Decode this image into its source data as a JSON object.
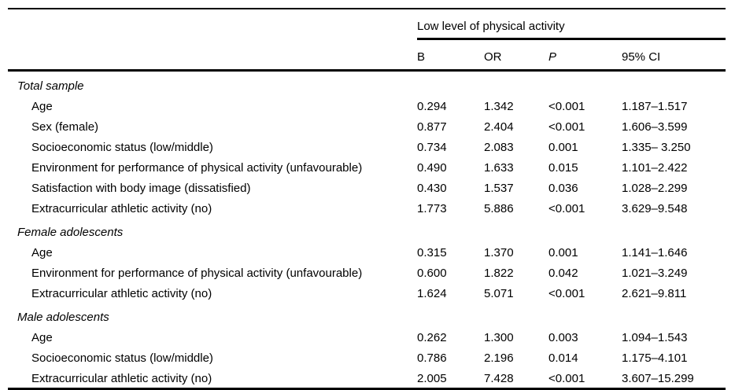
{
  "table": {
    "spanner_header": "Low level of physical activity",
    "columns": [
      "B",
      "OR",
      "P",
      "95% CI"
    ],
    "rows": [
      {
        "type": "group",
        "label": "Total sample"
      },
      {
        "type": "data",
        "label": "Age",
        "b": "0.294",
        "or": "1.342",
        "p": "<0.001",
        "ci": "1.187–1.517"
      },
      {
        "type": "data",
        "label": "Sex (female)",
        "b": "0.877",
        "or": "2.404",
        "p": "<0.001",
        "ci": "1.606–3.599"
      },
      {
        "type": "data",
        "label": "Socioeconomic status (low/middle)",
        "b": "0.734",
        "or": "2.083",
        "p": "0.001",
        "ci": "1.335– 3.250"
      },
      {
        "type": "data",
        "label": "Environment for performance of physical activity (unfavourable)",
        "b": "0.490",
        "or": "1.633",
        "p": "0.015",
        "ci": "1.101–2.422"
      },
      {
        "type": "data",
        "label": "Satisfaction with body image (dissatisfied)",
        "b": "0.430",
        "or": "1.537",
        "p": "0.036",
        "ci": "1.028–2.299"
      },
      {
        "type": "data",
        "label": "Extracurricular athletic activity (no)",
        "b": "1.773",
        "or": "5.886",
        "p": "<0.001",
        "ci": "3.629–9.548"
      },
      {
        "type": "group",
        "label": "Female adolescents"
      },
      {
        "type": "data",
        "label": "Age",
        "b": "0.315",
        "or": "1.370",
        "p": "0.001",
        "ci": "1.141–1.646"
      },
      {
        "type": "data",
        "label": "Environment for performance of physical activity (unfavourable)",
        "b": "0.600",
        "or": "1.822",
        "p": "0.042",
        "ci": "1.021–3.249"
      },
      {
        "type": "data",
        "label": "Extracurricular athletic activity (no)",
        "b": "1.624",
        "or": "5.071",
        "p": "<0.001",
        "ci": "2.621–9.811"
      },
      {
        "type": "group",
        "label": "Male adolescents"
      },
      {
        "type": "data",
        "label": "Age",
        "b": "0.262",
        "or": "1.300",
        "p": "0.003",
        "ci": "1.094–1.543"
      },
      {
        "type": "data",
        "label": "Socioeconomic status (low/middle)",
        "b": "0.786",
        "or": "2.196",
        "p": "0.014",
        "ci": "1.175–4.101"
      },
      {
        "type": "data",
        "label": "Extracurricular athletic activity (no)",
        "b": "2.005",
        "or": "7.428",
        "p": "<0.001",
        "ci": "3.607–15.299"
      }
    ],
    "colors": {
      "text": "#000000",
      "background": "#ffffff",
      "rule": "#000000"
    }
  }
}
